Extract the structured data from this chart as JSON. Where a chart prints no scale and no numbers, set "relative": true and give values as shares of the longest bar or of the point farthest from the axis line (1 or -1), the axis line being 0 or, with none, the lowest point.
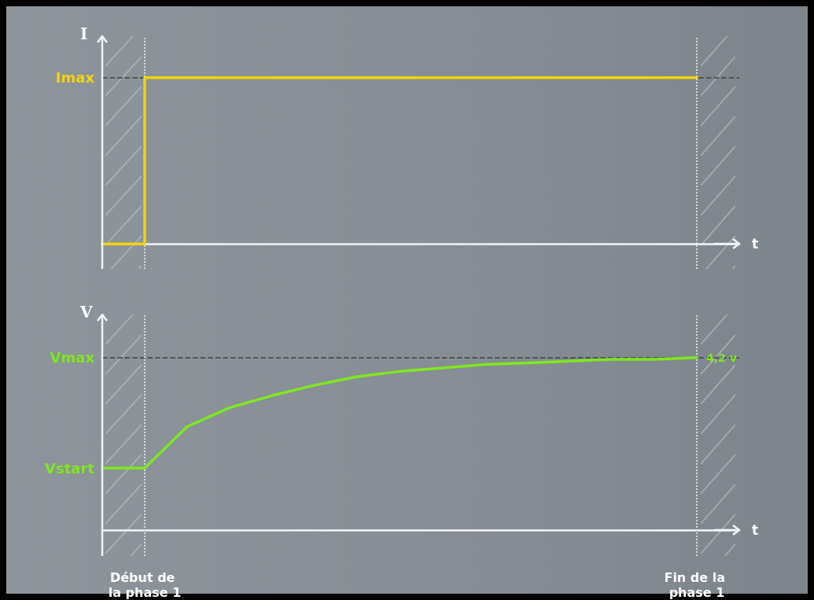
{
  "chart_data": [
    {
      "type": "step",
      "relative": true,
      "xlabel": "t",
      "ylabel": "I",
      "categories": [
        null,
        "Début de la phase 1",
        null,
        null,
        null,
        null,
        null,
        null,
        null,
        null,
        null,
        null,
        null,
        null,
        "Fin de la phase 1",
        null
      ],
      "tick_labels": false,
      "marker": "none",
      "line_style": "solid",
      "series": [
        {
          "color": "#f2d40c",
          "values": [
            0,
            1,
            1,
            1,
            1,
            1,
            1,
            1,
            1,
            1,
            1,
            1,
            1,
            1,
            1,
            null
          ]
        }
      ],
      "ref_lines": [
        {
          "axis": "y",
          "value": 1,
          "label": "Imax",
          "color": "#3a3f44",
          "line_style": "dashed"
        },
        {
          "axis": "x",
          "value": "Début de la phase 1",
          "color": "#d8dbde",
          "line_style": "dotted"
        },
        {
          "axis": "x",
          "value": "Fin de la phase 1",
          "color": "#d8dbde",
          "line_style": "dotted"
        }
      ]
    },
    {
      "type": "line",
      "relative": true,
      "xlabel": "t",
      "ylabel": "V",
      "categories": [
        null,
        "Début de la phase 1",
        null,
        null,
        null,
        null,
        null,
        null,
        null,
        null,
        null,
        null,
        null,
        null,
        "Fin de la phase 1",
        null
      ],
      "tick_labels": "x",
      "marker": "none",
      "line_style": "solid",
      "series": [
        {
          "color": "#7ee81e",
          "values": [
            0.36,
            0.36,
            0.6,
            0.71,
            0.78,
            0.84,
            0.89,
            0.92,
            0.94,
            0.96,
            0.97,
            0.98,
            0.99,
            0.99,
            1,
            null
          ]
        }
      ],
      "ref_lines": [
        {
          "axis": "y",
          "value": 1,
          "label": "Vmax",
          "color": "#3a3f44",
          "line_style": "dashed"
        },
        {
          "axis": "x",
          "value": "Début de la phase 1",
          "color": "#d8dbde",
          "line_style": "dotted"
        },
        {
          "axis": "x",
          "value": "Fin de la phase 1",
          "color": "#d8dbde",
          "line_style": "dotted"
        }
      ],
      "annotations": [
        "Vstart",
        {
          "text": "4,2 v",
          "x": "Fin de la phase 1",
          "y": 1
        }
      ]
    }
  ]
}
